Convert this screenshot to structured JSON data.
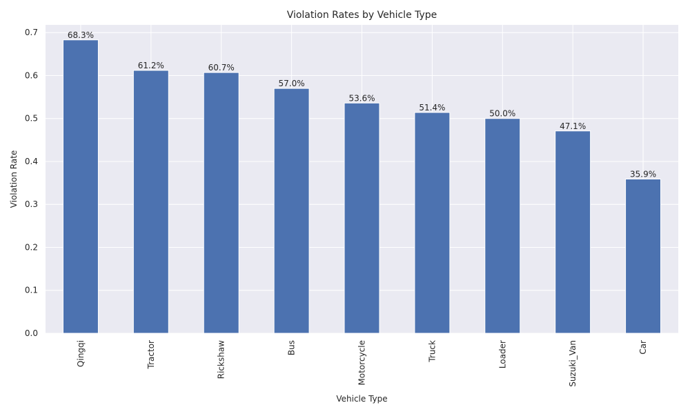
{
  "chart_data": {
    "type": "bar",
    "title": "Violation Rates by Vehicle Type",
    "xlabel": "Vehicle Type",
    "ylabel": "Violation Rate",
    "categories": [
      "Qingqi",
      "Tractor",
      "Rickshaw",
      "Bus",
      "Motorcycle",
      "Truck",
      "Loader",
      "Suzuki_Van",
      "Car"
    ],
    "values": [
      0.683,
      0.612,
      0.607,
      0.57,
      0.536,
      0.514,
      0.5,
      0.471,
      0.359
    ],
    "data_labels": [
      "68.3%",
      "61.2%",
      "60.7%",
      "57.0%",
      "53.6%",
      "51.4%",
      "50.0%",
      "47.1%",
      "35.9%"
    ],
    "yticks": [
      "0.0",
      "0.1",
      "0.2",
      "0.3",
      "0.4",
      "0.5",
      "0.6",
      "0.7"
    ],
    "ylim": [
      0,
      0.718
    ],
    "grid": true,
    "colors": {
      "bar": "#4c72b0",
      "plot_background": "#eaeaf2",
      "grid": "#ffffff"
    }
  }
}
